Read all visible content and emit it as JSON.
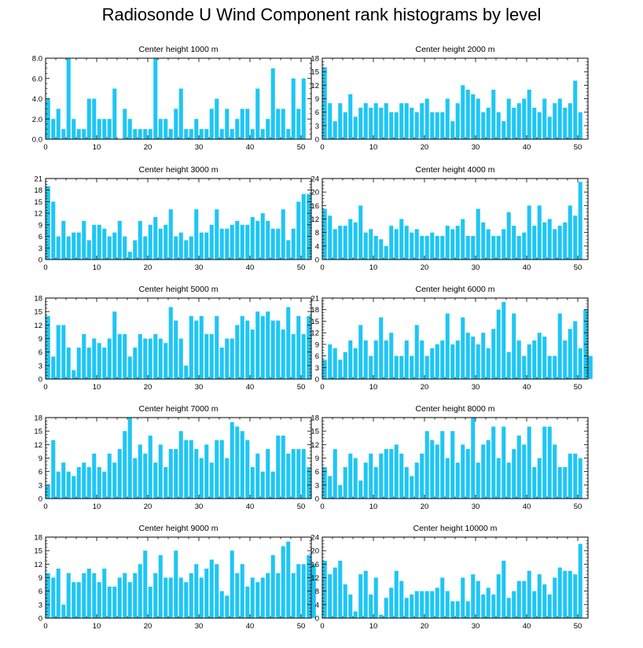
{
  "title": "Radiosonde U Wind Component rank histograms by level",
  "bar_color": "#1ec6f5",
  "x_ticks": [
    0,
    10,
    20,
    30,
    40,
    50
  ],
  "chart_data": [
    {
      "type": "bar",
      "title": "Center height 1000 m",
      "xlim": [
        0,
        52
      ],
      "ylim": [
        0,
        8
      ],
      "yticks": [
        "0.0",
        "2.0",
        "4.0",
        "6.0",
        "8.0"
      ],
      "values": [
        4,
        2,
        3,
        1,
        8,
        2,
        1,
        1,
        4,
        4,
        2,
        2,
        2,
        5,
        0,
        3,
        2,
        1,
        1,
        1,
        1,
        8,
        2,
        2,
        1,
        3,
        5,
        1,
        1,
        2,
        1,
        1,
        3,
        4,
        1,
        3,
        1,
        2,
        3,
        3,
        1,
        5,
        1,
        2,
        7,
        3,
        3,
        1,
        6,
        3,
        6
      ]
    },
    {
      "type": "bar",
      "title": "Center height 2000 m",
      "xlim": [
        0,
        52
      ],
      "ylim": [
        0,
        18
      ],
      "yticks": [
        "0",
        "3",
        "6",
        "9",
        "12",
        "15",
        "18"
      ],
      "values": [
        16,
        8,
        4,
        8,
        6,
        10,
        5,
        7,
        8,
        7,
        8,
        7,
        8,
        6,
        6,
        8,
        8,
        7,
        6,
        8,
        9,
        6,
        6,
        6,
        9,
        4,
        8,
        12,
        11,
        10,
        9,
        6,
        7,
        11,
        6,
        4,
        9,
        7,
        8,
        9,
        11,
        7,
        6,
        9,
        5,
        8,
        9,
        7,
        8,
        13,
        6
      ]
    },
    {
      "type": "bar",
      "title": "Center height 3000 m",
      "xlim": [
        0,
        52
      ],
      "ylim": [
        0,
        21
      ],
      "yticks": [
        "0",
        "3",
        "6",
        "9",
        "12",
        "15",
        "18",
        "21"
      ],
      "values": [
        19,
        15,
        6,
        10,
        6,
        7,
        7,
        10,
        5,
        9,
        9,
        8,
        6,
        7,
        10,
        6,
        2,
        5,
        10,
        6,
        9,
        11,
        8,
        9,
        13,
        6,
        7,
        5,
        6,
        13,
        7,
        7,
        9,
        13,
        8,
        8,
        9,
        10,
        9,
        9,
        11,
        10,
        12,
        10,
        8,
        8,
        13,
        5,
        8,
        15,
        17,
        17
      ]
    },
    {
      "type": "bar",
      "title": "Center height 4000 m",
      "xlim": [
        0,
        52
      ],
      "ylim": [
        0,
        24
      ],
      "yticks": [
        "0",
        "4",
        "8",
        "12",
        "16",
        "20",
        "24"
      ],
      "values": [
        15,
        13,
        9,
        10,
        10,
        12,
        11,
        16,
        8,
        9,
        7,
        6,
        4,
        10,
        9,
        12,
        10,
        8,
        9,
        7,
        7,
        8,
        7,
        7,
        10,
        9,
        10,
        12,
        7,
        7,
        15,
        11,
        9,
        7,
        7,
        9,
        14,
        10,
        7,
        8,
        16,
        10,
        16,
        11,
        12,
        9,
        10,
        11,
        16,
        13,
        23
      ]
    },
    {
      "type": "bar",
      "title": "Center height 5000 m",
      "xlim": [
        0,
        52
      ],
      "ylim": [
        0,
        18
      ],
      "yticks": [
        "0",
        "3",
        "6",
        "9",
        "12",
        "15",
        "18"
      ],
      "values": [
        14,
        5,
        12,
        12,
        7,
        2,
        7,
        10,
        7,
        9,
        8,
        7,
        9,
        15,
        10,
        10,
        5,
        7,
        10,
        9,
        9,
        10,
        9,
        8,
        16,
        13,
        9,
        3,
        14,
        13,
        14,
        10,
        10,
        14,
        7,
        9,
        9,
        12,
        14,
        13,
        11,
        15,
        14,
        15,
        13,
        13,
        11,
        16,
        10,
        14,
        10,
        14
      ]
    },
    {
      "type": "bar",
      "title": "Center height 6000 m",
      "xlim": [
        0,
        52
      ],
      "ylim": [
        0,
        21
      ],
      "yticks": [
        "0",
        "3",
        "6",
        "9",
        "12",
        "15",
        "18",
        "21"
      ],
      "values": [
        5,
        9,
        8,
        5,
        7,
        10,
        8,
        14,
        10,
        6,
        10,
        16,
        10,
        12,
        6,
        6,
        10,
        6,
        14,
        10,
        6,
        8,
        9,
        10,
        17,
        9,
        10,
        16,
        12,
        11,
        9,
        12,
        8,
        13,
        18,
        20,
        7,
        17,
        10,
        6,
        9,
        10,
        12,
        11,
        6,
        6,
        17,
        10,
        13,
        15,
        8,
        18,
        6
      ]
    },
    {
      "type": "bar",
      "title": "Center height 7000 m",
      "xlim": [
        0,
        52
      ],
      "ylim": [
        0,
        18
      ],
      "yticks": [
        "0",
        "3",
        "6",
        "9",
        "12",
        "15",
        "18"
      ],
      "values": [
        3,
        13,
        6,
        8,
        6,
        5,
        7,
        8,
        7,
        10,
        7,
        6,
        10,
        8,
        11,
        15,
        18,
        9,
        12,
        10,
        14,
        8,
        12,
        7,
        11,
        11,
        15,
        13,
        13,
        11,
        9,
        12,
        8,
        13,
        13,
        9,
        17,
        16,
        15,
        13,
        7,
        10,
        6,
        11,
        6,
        14,
        14,
        10,
        11,
        11,
        11,
        7
      ]
    },
    {
      "type": "bar",
      "title": "Center height 8000 m",
      "xlim": [
        0,
        52
      ],
      "ylim": [
        0,
        18
      ],
      "yticks": [
        "0",
        "3",
        "6",
        "9",
        "12",
        "15",
        "18"
      ],
      "values": [
        7,
        5,
        11,
        3,
        7,
        10,
        9,
        4,
        8,
        10,
        7,
        10,
        11,
        11,
        12,
        10,
        7,
        5,
        8,
        10,
        15,
        13,
        12,
        15,
        9,
        15,
        8,
        12,
        11,
        18,
        8,
        12,
        13,
        16,
        9,
        16,
        8,
        11,
        14,
        12,
        16,
        7,
        9,
        16,
        16,
        12,
        7,
        7,
        10,
        10,
        9
      ]
    },
    {
      "type": "bar",
      "title": "Center height 9000 m",
      "xlim": [
        0,
        52
      ],
      "ylim": [
        0,
        18
      ],
      "yticks": [
        "0",
        "3",
        "6",
        "9",
        "12",
        "15",
        "18"
      ],
      "values": [
        10,
        9,
        11,
        3,
        10,
        8,
        8,
        10,
        11,
        10,
        8,
        11,
        7,
        7,
        9,
        10,
        8,
        10,
        12,
        15,
        7,
        10,
        14,
        9,
        9,
        15,
        9,
        8,
        10,
        12,
        9,
        11,
        13,
        12,
        6,
        5,
        15,
        10,
        12,
        7,
        9,
        8,
        9,
        10,
        14,
        10,
        16,
        17,
        10,
        12,
        12,
        14,
        12
      ]
    },
    {
      "type": "bar",
      "title": "Center height 10000 m",
      "xlim": [
        0,
        52
      ],
      "ylim": [
        0,
        24
      ],
      "yticks": [
        "0",
        "4",
        "8",
        "12",
        "16",
        "20",
        "24"
      ],
      "values": [
        17,
        13,
        15,
        17,
        10,
        7,
        2,
        13,
        14,
        7,
        12,
        1,
        6,
        9,
        14,
        11,
        6,
        7,
        8,
        8,
        8,
        8,
        9,
        12,
        8,
        5,
        5,
        12,
        5,
        13,
        11,
        7,
        9,
        7,
        13,
        17,
        6,
        8,
        11,
        11,
        14,
        8,
        13,
        10,
        7,
        12,
        15,
        14,
        14,
        13,
        22
      ]
    }
  ]
}
